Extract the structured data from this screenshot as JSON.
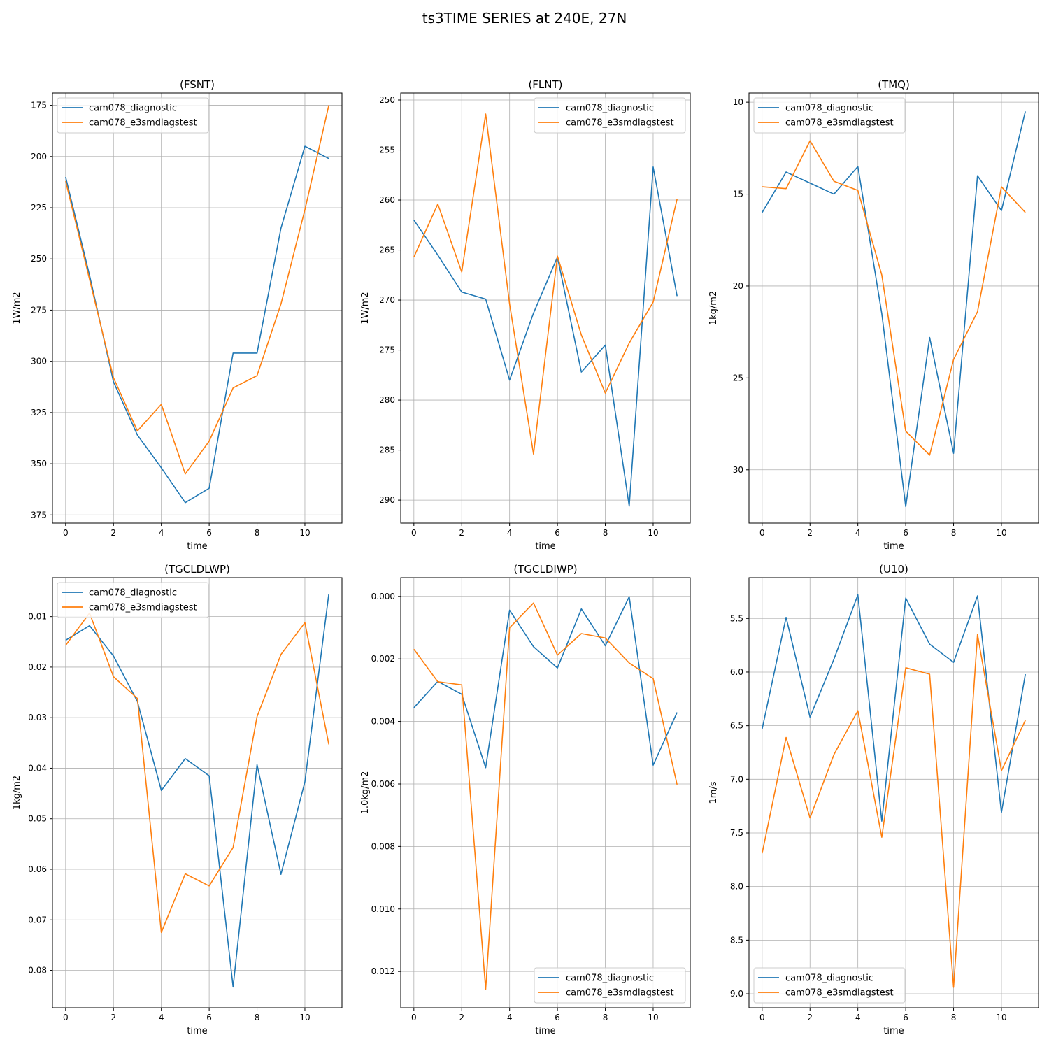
{
  "figure": {
    "title": "ts3TIME SERIES at 240E, 27N"
  },
  "colors": {
    "series1": "#1f77b4",
    "series2": "#ff7f0e",
    "grid": "#b0b0b0",
    "axis": "#000000"
  },
  "chart_data": [
    {
      "type": "line",
      "title": "(FSNT)",
      "xlabel": "time",
      "ylabel": "1W/m2",
      "xlim": [
        -0.55,
        11.55
      ],
      "ylim": [
        379,
        169
      ],
      "y_inverted": true,
      "xticks": [
        0,
        2,
        4,
        6,
        8,
        10
      ],
      "yticks": [
        175,
        200,
        225,
        250,
        275,
        300,
        325,
        350,
        375
      ],
      "ytick_labels": [
        "175",
        "200",
        "225",
        "250",
        "275",
        "300",
        "325",
        "350",
        "375"
      ],
      "grid": true,
      "legend_loc": "upper-left",
      "x": [
        0,
        1,
        2,
        3,
        4,
        5,
        6,
        7,
        8,
        9,
        10,
        11
      ],
      "series": [
        {
          "name": "cam078_diagnostic",
          "values": [
            210,
            258,
            310,
            336,
            352,
            369,
            362,
            296,
            296,
            235,
            195,
            201
          ]
        },
        {
          "name": "cam078_e3smdiagstest",
          "values": [
            212,
            260,
            308,
            334,
            321,
            355,
            339,
            313,
            307,
            272,
            226,
            175
          ]
        }
      ]
    },
    {
      "type": "line",
      "title": "(FLNT)",
      "xlabel": "time",
      "ylabel": "1W/m2",
      "xlim": [
        -0.55,
        11.55
      ],
      "ylim": [
        292.3,
        249.3
      ],
      "y_inverted": true,
      "xticks": [
        0,
        2,
        4,
        6,
        8,
        10
      ],
      "yticks": [
        250,
        255,
        260,
        265,
        270,
        275,
        280,
        285,
        290
      ],
      "ytick_labels": [
        "250",
        "255",
        "260",
        "265",
        "270",
        "275",
        "280",
        "285",
        "290"
      ],
      "grid": true,
      "legend_loc": "upper-right",
      "x": [
        0,
        1,
        2,
        3,
        4,
        5,
        6,
        7,
        8,
        9,
        10,
        11
      ],
      "series": [
        {
          "name": "cam078_diagnostic",
          "values": [
            262,
            265.5,
            269.2,
            269.9,
            278,
            271.3,
            265.7,
            277.2,
            274.5,
            290.6,
            256.7,
            269.6
          ]
        },
        {
          "name": "cam078_e3smdiagstest",
          "values": [
            265.7,
            260.4,
            267.2,
            251.4,
            270.4,
            285.4,
            265.6,
            273.5,
            279.3,
            274.3,
            270.2,
            259.9
          ]
        }
      ]
    },
    {
      "type": "line",
      "title": "(TMQ)",
      "xlabel": "time",
      "ylabel": "1kg/m2",
      "xlim": [
        -0.55,
        11.55
      ],
      "ylim": [
        32.9,
        9.5
      ],
      "y_inverted": true,
      "xticks": [
        0,
        2,
        4,
        6,
        8,
        10
      ],
      "yticks": [
        10,
        15,
        20,
        25,
        30
      ],
      "ytick_labels": [
        "10",
        "15",
        "20",
        "25",
        "30"
      ],
      "grid": true,
      "legend_loc": "upper-left",
      "x": [
        0,
        1,
        2,
        3,
        4,
        5,
        6,
        7,
        8,
        9,
        10,
        11
      ],
      "series": [
        {
          "name": "cam078_diagnostic",
          "values": [
            16,
            13.8,
            14.4,
            15,
            13.5,
            21.5,
            32,
            22.8,
            29.1,
            14,
            15.9,
            10.5
          ]
        },
        {
          "name": "cam078_e3smdiagstest",
          "values": [
            14.6,
            14.7,
            12.1,
            14.3,
            14.8,
            19.4,
            27.9,
            29.2,
            24,
            21.4,
            14.6,
            16
          ]
        }
      ]
    },
    {
      "type": "line",
      "title": "(TGCLDLWP)",
      "xlabel": "time",
      "ylabel": "1kg/m2",
      "xlim": [
        -0.55,
        11.55
      ],
      "ylim": [
        0.0874,
        0.0023
      ],
      "y_inverted": true,
      "xticks": [
        0,
        2,
        4,
        6,
        8,
        10
      ],
      "yticks": [
        0.01,
        0.02,
        0.03,
        0.04,
        0.05,
        0.06,
        0.07,
        0.08
      ],
      "ytick_labels": [
        "0.01",
        "0.02",
        "0.03",
        "0.04",
        "0.05",
        "0.06",
        "0.07",
        "0.08"
      ],
      "grid": true,
      "legend_loc": "upper-left",
      "x": [
        0,
        1,
        2,
        3,
        4,
        5,
        6,
        7,
        8,
        9,
        10,
        11
      ],
      "series": [
        {
          "name": "cam078_diagnostic",
          "values": [
            0.0147,
            0.0118,
            0.0178,
            0.0268,
            0.0444,
            0.0381,
            0.0415,
            0.0833,
            0.0393,
            0.061,
            0.0427,
            0.0055
          ]
        },
        {
          "name": "cam078_e3smdiagstest",
          "values": [
            0.0157,
            0.0093,
            0.0219,
            0.0262,
            0.0725,
            0.0609,
            0.0633,
            0.0557,
            0.0298,
            0.0175,
            0.0112,
            0.0353
          ]
        }
      ]
    },
    {
      "type": "line",
      "title": "(TGCLDIWP)",
      "xlabel": "time",
      "ylabel": "1.0kg/m2",
      "xlim": [
        -0.55,
        11.55
      ],
      "ylim": [
        0.01316,
        -0.0006
      ],
      "y_inverted": true,
      "xticks": [
        0,
        2,
        4,
        6,
        8,
        10
      ],
      "yticks": [
        0,
        0.002,
        0.004,
        0.006,
        0.008,
        0.01,
        0.012
      ],
      "ytick_labels": [
        "0.000",
        "0.002",
        "0.004",
        "0.006",
        "0.008",
        "0.010",
        "0.012"
      ],
      "grid": true,
      "legend_loc": "lower-right",
      "x": [
        0,
        1,
        2,
        3,
        4,
        5,
        6,
        7,
        8,
        9,
        10,
        11
      ],
      "series": [
        {
          "name": "cam078_diagnostic",
          "values": [
            0.00356,
            0.00272,
            0.00313,
            0.00548,
            0.00044,
            0.00161,
            0.00229,
            0.0004,
            0.00158,
            1e-05,
            0.0054,
            0.00371
          ]
        },
        {
          "name": "cam078_e3smdiagstest",
          "values": [
            0.00169,
            0.00273,
            0.00283,
            0.01257,
            0.001,
            0.00021,
            0.00188,
            0.00119,
            0.00133,
            0.00213,
            0.00263,
            0.00602
          ]
        }
      ]
    },
    {
      "type": "line",
      "title": "(U10)",
      "xlabel": "time",
      "ylabel": "1m/s",
      "xlim": [
        -0.55,
        11.55
      ],
      "ylim": [
        9.13,
        5.12
      ],
      "y_inverted": true,
      "xticks": [
        0,
        2,
        4,
        6,
        8,
        10
      ],
      "yticks": [
        5.5,
        6,
        6.5,
        7,
        7.5,
        8,
        8.5,
        9
      ],
      "ytick_labels": [
        "5.5",
        "6.0",
        "6.5",
        "7.0",
        "7.5",
        "8.0",
        "8.5",
        "9.0"
      ],
      "grid": true,
      "legend_loc": "lower-left",
      "x": [
        0,
        1,
        2,
        3,
        4,
        5,
        6,
        7,
        8,
        9,
        10,
        11
      ],
      "series": [
        {
          "name": "cam078_diagnostic",
          "values": [
            6.53,
            5.49,
            6.42,
            5.88,
            5.28,
            7.39,
            5.31,
            5.74,
            5.91,
            5.29,
            7.31,
            6.02
          ]
        },
        {
          "name": "cam078_e3smdiagstest",
          "values": [
            7.69,
            6.61,
            7.36,
            6.77,
            6.36,
            7.54,
            5.96,
            6.02,
            8.94,
            5.65,
            6.92,
            6.45
          ]
        }
      ]
    }
  ]
}
